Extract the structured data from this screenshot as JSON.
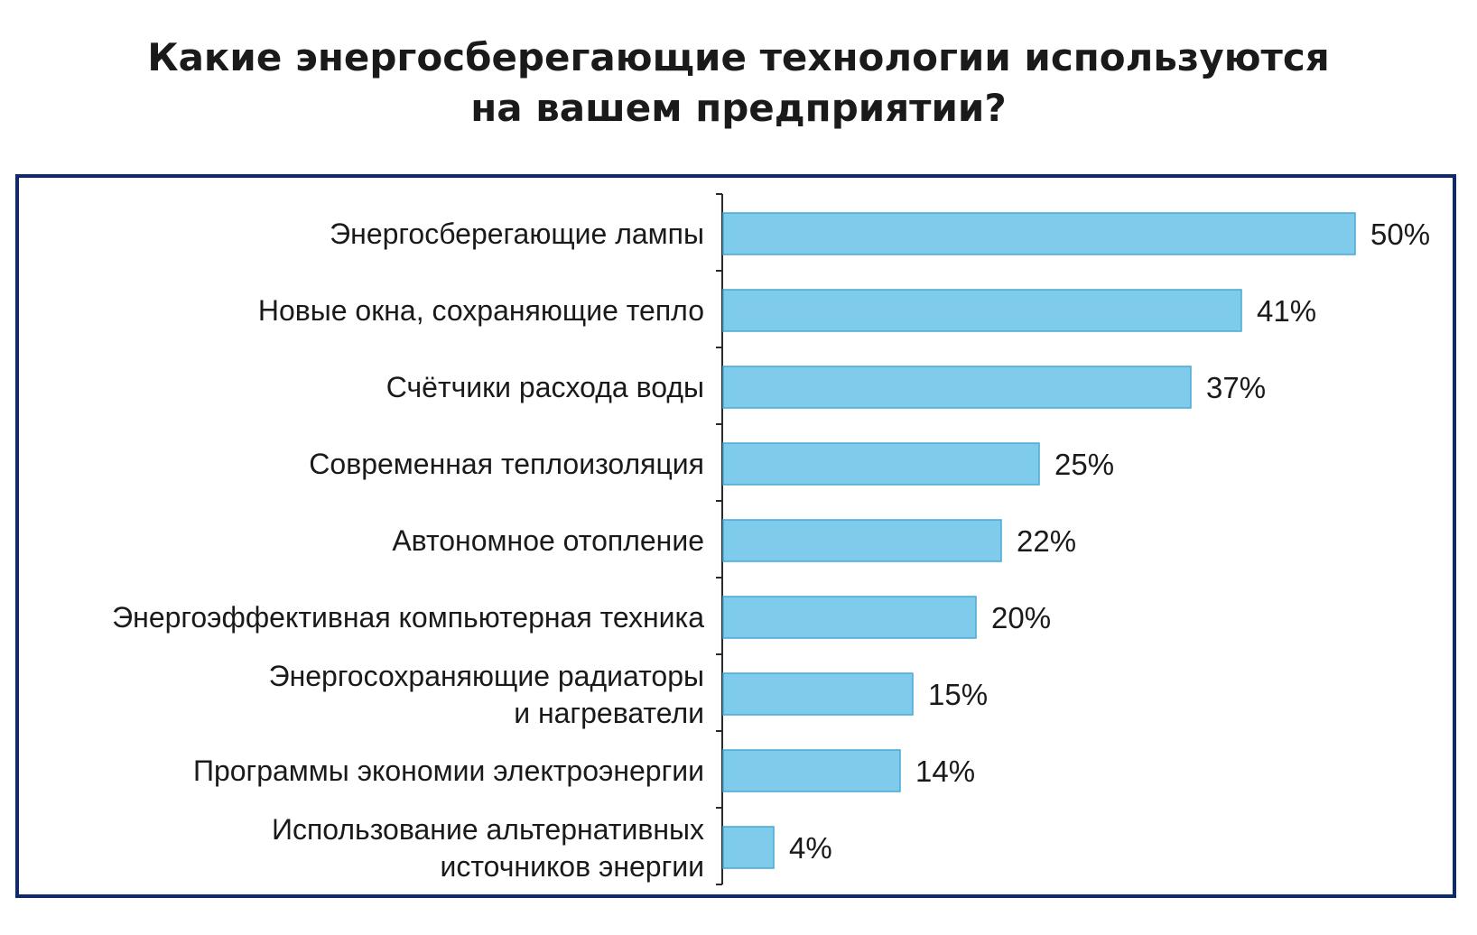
{
  "chart_data": {
    "type": "bar",
    "orientation": "horizontal",
    "title_lines": [
      "Какие энергосберегающие технологии используются",
      "на вашем предприятии?"
    ],
    "categories": [
      [
        "Энергосберегающие лампы"
      ],
      [
        "Новые окна, сохраняющие тепло"
      ],
      [
        "Счётчики расхода воды"
      ],
      [
        "Современная теплоизоляция"
      ],
      [
        "Автономное отопление"
      ],
      [
        "Энергоэффективная компьютерная техника"
      ],
      [
        "Энергосохраняющие  радиаторы",
        "и  нагреватели"
      ],
      [
        "Программы  экономии  электроэнергии"
      ],
      [
        "Использование  альтернативных",
        "источников  энергии"
      ]
    ],
    "values": [
      50,
      41,
      37,
      25,
      22,
      20,
      15,
      14,
      4
    ],
    "value_labels": [
      "50%",
      "41%",
      "37%",
      "25%",
      "22%",
      "20%",
      "15%",
      "14%",
      "4%"
    ],
    "unit": "%",
    "xlim": [
      0,
      50
    ],
    "grid": false,
    "legend": "none",
    "bar_color": "#7ecbec",
    "bar_edge_color": "#4aa8d4",
    "frame_color": "#0d2a6e"
  }
}
